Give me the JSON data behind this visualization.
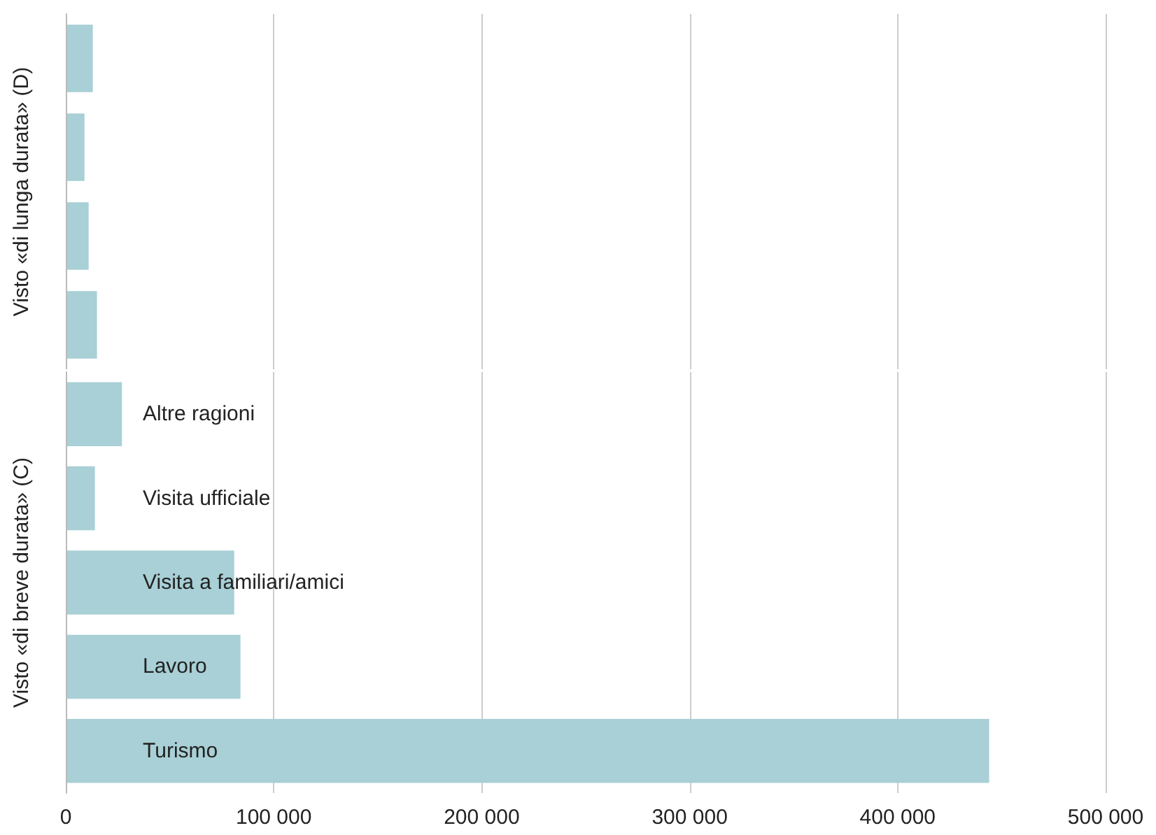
{
  "chart_data": [
    {
      "type": "bar",
      "orientation": "horizontal",
      "ylabel": "Visto «di lunga durata» (D)",
      "categories": [
        null,
        null,
        null,
        null
      ],
      "values": [
        13000,
        9000,
        11000,
        15000
      ],
      "color": "#a8d0d6",
      "xlim": [
        0,
        500000
      ],
      "xticks": [
        0,
        100000,
        200000,
        300000,
        400000,
        500000
      ],
      "grid": "x",
      "tick_labels": false
    },
    {
      "type": "bar",
      "orientation": "horizontal",
      "ylabel": "Visto «di breve durata» (C)",
      "categories": [
        "Altre ragioni",
        "Visita ufficiale",
        "Visita a familiari/amici",
        "Lavoro",
        "Turismo"
      ],
      "values": [
        27000,
        14000,
        81000,
        84000,
        444000
      ],
      "color": "#a8d0d6",
      "xlim": [
        0,
        500000
      ],
      "xticks": [
        0,
        {
          "value": 100000,
          "label": "100 000"
        },
        {
          "value": 200000,
          "label": "200 000"
        },
        {
          "value": 300000,
          "label": "300 000"
        },
        {
          "value": 400000,
          "label": "400 000"
        },
        {
          "value": 500000,
          "label": "500 000"
        }
      ],
      "grid": "x"
    }
  ]
}
